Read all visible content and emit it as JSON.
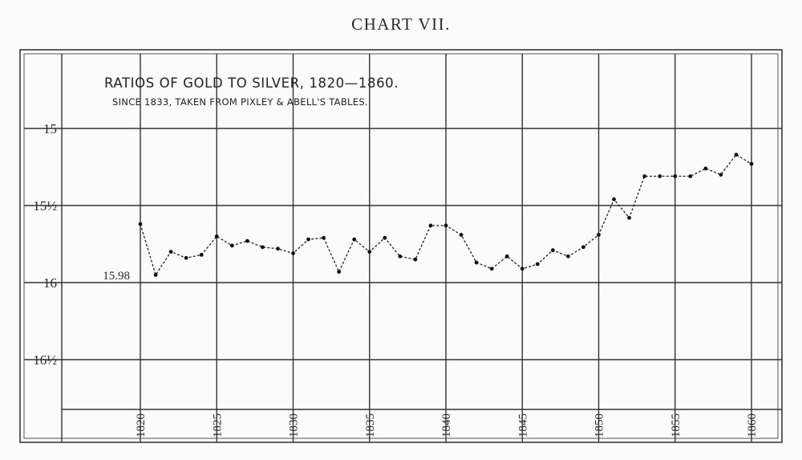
{
  "page": {
    "heading": "CHART VII."
  },
  "chart_data": {
    "type": "line",
    "title": "RATIOS OF GOLD TO SILVER, 1820—1860.",
    "subtitle": "SINCE 1833, TAKEN FROM PIXLEY & ABELL'S TABLES.",
    "xlabel": "",
    "ylabel": "",
    "xlim": [
      1820,
      1860
    ],
    "ylim": [
      16.75,
      14.5
    ],
    "y_inverted": true,
    "grid": true,
    "x_ticks": [
      1820,
      1825,
      1830,
      1835,
      1840,
      1845,
      1850,
      1855,
      1860
    ],
    "x_tick_labels": [
      "1820",
      "1825",
      "1830",
      "1835",
      "1840",
      "1845",
      "1850",
      "1855",
      "1860"
    ],
    "y_ticks": [
      15,
      15.5,
      16,
      16.5
    ],
    "y_tick_labels": [
      "15",
      "15½",
      "16",
      "16½"
    ],
    "annotations": [
      {
        "text": "15.98",
        "x": 1820,
        "y": 16
      }
    ],
    "series": [
      {
        "x": [
          1820,
          1821,
          1822,
          1823,
          1824,
          1825,
          1826,
          1827,
          1828,
          1829,
          1830,
          1831,
          1832,
          1833,
          1834,
          1835,
          1836,
          1837,
          1838,
          1839,
          1840,
          1841,
          1842,
          1843,
          1844,
          1845,
          1846,
          1847,
          1848,
          1849,
          1850,
          1851,
          1852,
          1853,
          1854,
          1855,
          1856,
          1857,
          1858,
          1859,
          1860
        ],
        "values": [
          15.62,
          15.95,
          15.8,
          15.84,
          15.82,
          15.7,
          15.76,
          15.73,
          15.77,
          15.78,
          15.81,
          15.72,
          15.71,
          15.93,
          15.72,
          15.8,
          15.71,
          15.83,
          15.85,
          15.63,
          15.63,
          15.69,
          15.87,
          15.91,
          15.83,
          15.91,
          15.88,
          15.79,
          15.83,
          15.77,
          15.69,
          15.46,
          15.58,
          15.31,
          15.31,
          15.31,
          15.31,
          15.26,
          15.3,
          15.17,
          15.23
        ]
      }
    ]
  }
}
